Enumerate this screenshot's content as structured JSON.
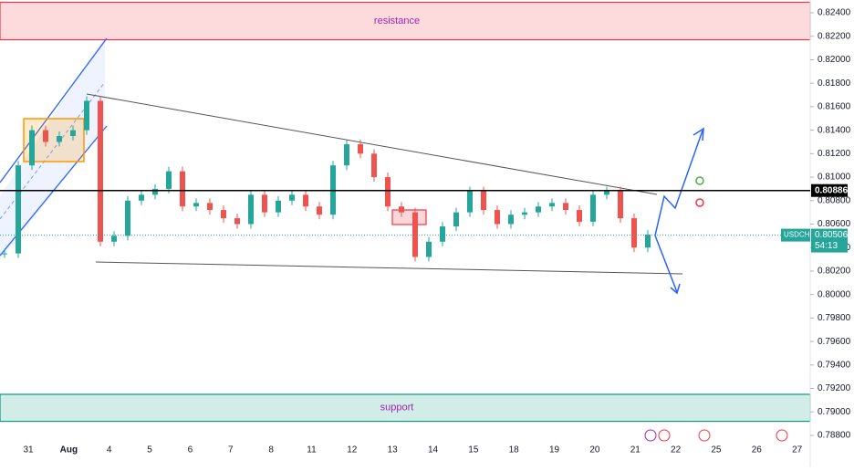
{
  "chart_data": {
    "type": "candlestick",
    "series": [
      {
        "name": "USDCHF",
        "up_color": "#26a69a",
        "down_color": "#ef5350",
        "values": [
          0.8035,
          0.811,
          0.814,
          0.813,
          0.8135,
          0.814,
          0.8165,
          0.8045,
          0.805,
          0.808,
          0.8085,
          0.809,
          0.8105,
          0.8075,
          0.8078,
          0.8072,
          0.8065,
          0.806,
          0.8085,
          0.807,
          0.808,
          0.8085,
          0.8075,
          0.8068,
          0.811,
          0.8128,
          0.812,
          0.81,
          0.8075,
          0.807,
          0.8032,
          0.8045,
          0.8058,
          0.807,
          0.8088,
          0.8072,
          0.806,
          0.8068,
          0.807,
          0.8075,
          0.8078,
          0.8072,
          0.8062,
          0.8085,
          0.8088,
          0.8065,
          0.804,
          0.8051
        ]
      }
    ],
    "date_labels": [
      "31",
      "Aug",
      "4",
      "5",
      "6",
      "7",
      "8",
      "11",
      "12",
      "13",
      "14",
      "15",
      "18",
      "19",
      "20",
      "21",
      "22",
      "25",
      "26",
      "27"
    ],
    "ylim": [
      0.788,
      0.824
    ],
    "yticks": [
      {
        "value": 0.788,
        "label": "0.78800"
      },
      {
        "value": 0.79,
        "label": "0.79000"
      },
      {
        "value": 0.792,
        "label": "0.79200"
      },
      {
        "value": 0.794,
        "label": "0.79400"
      },
      {
        "value": 0.796,
        "label": "0.79600"
      },
      {
        "value": 0.798,
        "label": "0.79800"
      },
      {
        "value": 0.8,
        "label": "0.80000"
      },
      {
        "value": 0.802,
        "label": "0.80200"
      },
      {
        "value": 0.804,
        "label": "0.80400"
      },
      {
        "value": 0.806,
        "label": "0.80600"
      },
      {
        "value": 0.808,
        "label": "0.80800"
      },
      {
        "value": 0.81,
        "label": "0.81000"
      },
      {
        "value": 0.812,
        "label": "0.81200"
      },
      {
        "value": 0.814,
        "label": "0.81400"
      },
      {
        "value": 0.816,
        "label": "0.81600"
      },
      {
        "value": 0.818,
        "label": "0.81800"
      },
      {
        "value": 0.82,
        "label": "0.82000"
      },
      {
        "value": 0.822,
        "label": "0.82200"
      },
      {
        "value": 0.824,
        "label": "0.82400"
      }
    ],
    "zones": [
      {
        "label": "resistance",
        "range": [
          0.8217,
          0.8249
        ],
        "color": "#f23645"
      },
      {
        "label": "support",
        "range": [
          0.7892,
          0.7915
        ],
        "color": "#089981"
      }
    ],
    "key_level": 0.80886,
    "current_price": 0.80506,
    "countdown": "54:13"
  }
}
